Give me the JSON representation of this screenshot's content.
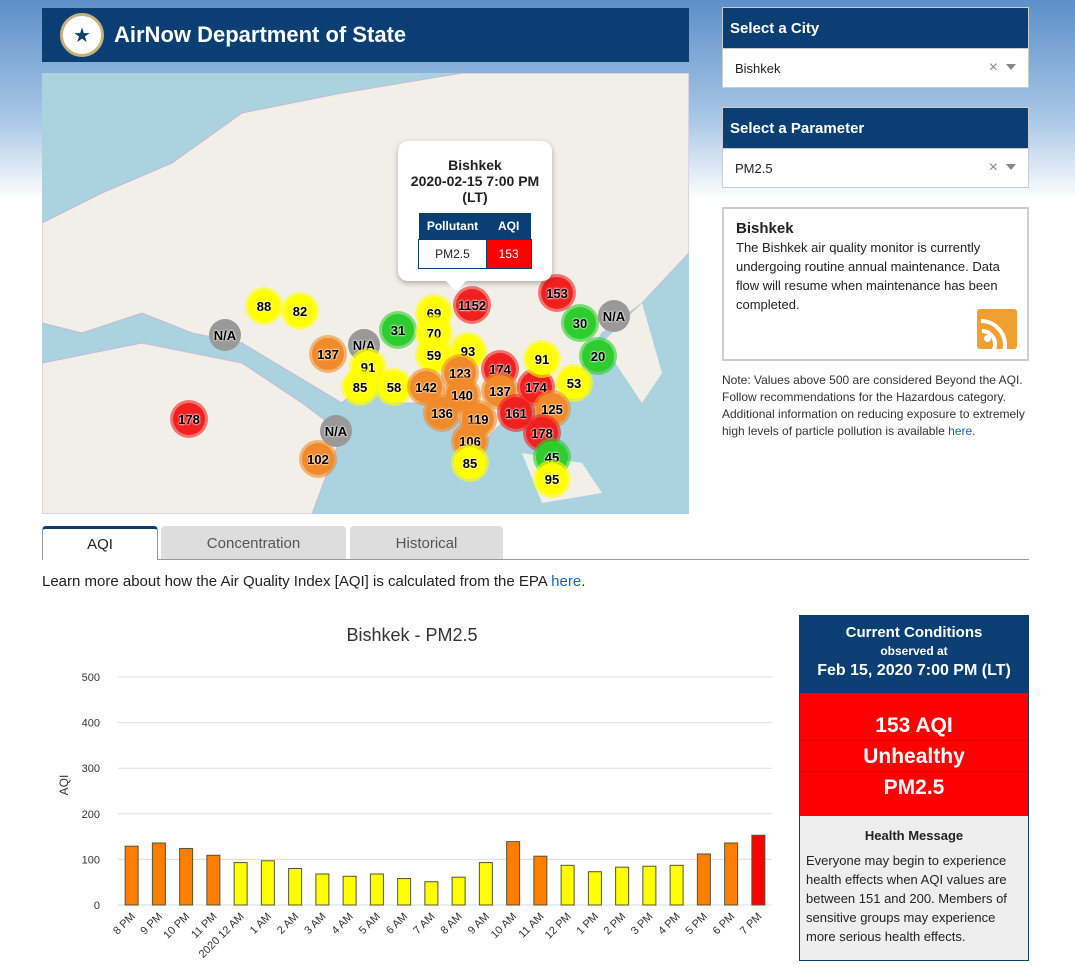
{
  "header": {
    "title": "AirNow Department of State",
    "logo": "us-department-of-state-seal"
  },
  "map": {
    "popup": {
      "city": "Bishkek",
      "datetime": "2020-02-15 7:00 PM (LT)",
      "col_pollutant": "Pollutant",
      "col_aqi": "AQI",
      "pollutant": "PM2.5",
      "aqi": "153",
      "aqi_color": "#ff0000"
    },
    "markers": [
      "88",
      "82",
      "N/A",
      "137",
      "N/A",
      "91",
      "85",
      "58",
      "178",
      "N/A",
      "102",
      "31",
      "69",
      "70",
      "1152",
      "59",
      "93",
      "123",
      "140",
      "142",
      "174",
      "137",
      "174",
      "136",
      "119",
      "106",
      "85",
      "153",
      "30",
      "N/A",
      "91",
      "20",
      "53",
      "125",
      "161",
      "178",
      "45",
      "95"
    ]
  },
  "city_select": {
    "label": "Select a City",
    "value": "Bishkek"
  },
  "param_select": {
    "label": "Select a Parameter",
    "value": "PM2.5"
  },
  "info": {
    "title": "Bishkek",
    "text": "The Bishkek air quality monitor is currently undergoing routine annual maintenance. Data flow will resume when maintenance has been completed.",
    "icon": "rss-icon"
  },
  "note": {
    "text": "Note: Values above 500 are considered Beyond the AQI. Follow recommendations for the Hazardous category. Additional information on reducing exposure to extremely high levels of particle pollution is available ",
    "link": "here",
    "end": "."
  },
  "tabs": [
    "AQI",
    "Concentration",
    "Historical"
  ],
  "learn": {
    "text": "Learn more about how the Air Quality Index [AQI] is calculated from the EPA ",
    "link": "here",
    "end": "."
  },
  "chart_data": {
    "type": "bar",
    "title": "Bishkek - PM2.5",
    "ylabel": "AQI",
    "xlabel": "",
    "ylim": [
      0,
      500
    ],
    "yticks": [
      0,
      100,
      200,
      300,
      400,
      500
    ],
    "grid": true,
    "categories": [
      "8 PM",
      "9 PM",
      "10 PM",
      "11 PM",
      "2020 12 AM",
      "1 AM",
      "2 AM",
      "3 AM",
      "4 AM",
      "5 AM",
      "6 AM",
      "7 AM",
      "8 AM",
      "9 AM",
      "10 AM",
      "11 AM",
      "12 PM",
      "1 PM",
      "2 PM",
      "3 PM",
      "4 PM",
      "5 PM",
      "6 PM",
      "7 PM"
    ],
    "values": [
      129,
      136,
      124,
      109,
      93,
      97,
      80,
      68,
      63,
      68,
      58,
      51,
      61,
      93,
      139,
      107,
      87,
      73,
      83,
      85,
      87,
      112,
      136,
      153
    ],
    "colors": {
      "moderate": "#ffff00",
      "usg": "#ff7e00",
      "unhealthy": "#ff0000"
    }
  },
  "current": {
    "title": "Current Conditions",
    "observed": "observed at",
    "datetime": "Feb 15, 2020 7:00 PM (LT)",
    "aqi": "153 AQI",
    "category": "Unhealthy",
    "param": "PM2.5",
    "hm_title": "Health Message",
    "hm_text": "Everyone may begin to experience health effects when AQI values are between 151 and 200. Members of sensitive groups may experience more serious health effects."
  }
}
